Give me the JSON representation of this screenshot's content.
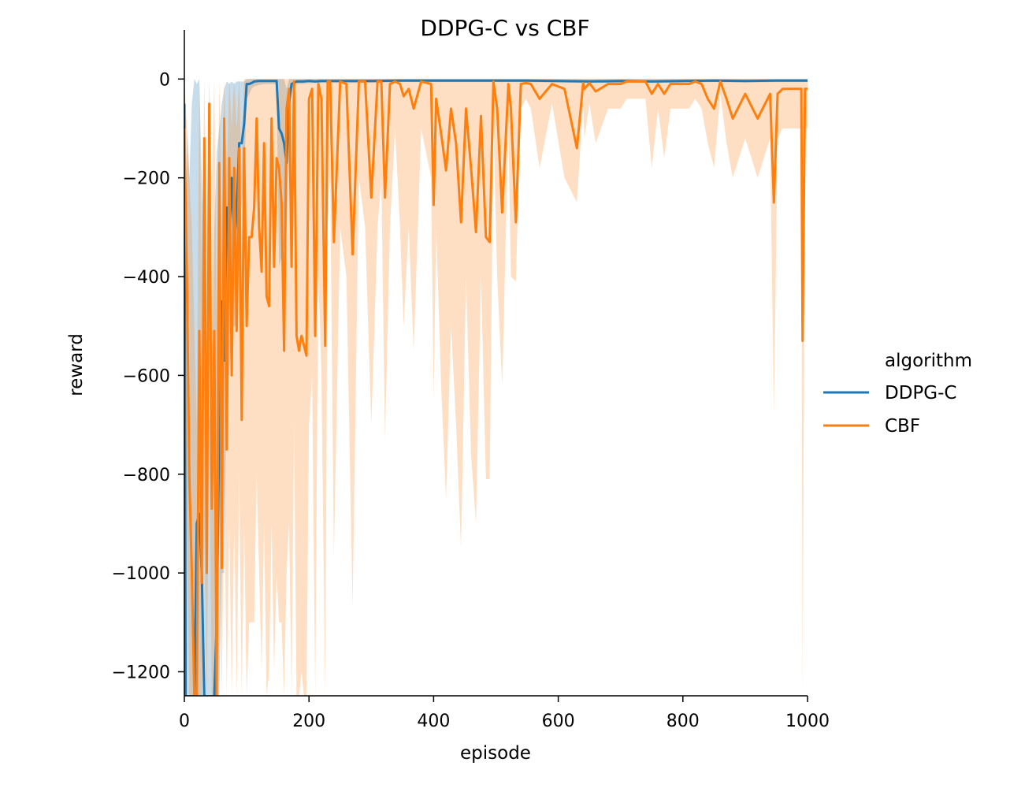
{
  "chart_data": {
    "type": "line",
    "title": "DDPG-C vs CBF",
    "xlabel": "episode",
    "ylabel": "reward",
    "xlim": [
      0,
      1000
    ],
    "ylim": [
      -1250,
      100
    ],
    "xticks": [
      0,
      200,
      400,
      600,
      800,
      1000
    ],
    "yticks": [
      0,
      -200,
      -400,
      -600,
      -800,
      -1000,
      -1200
    ],
    "xtick_labels": [
      "0",
      "200",
      "400",
      "600",
      "800",
      "1000"
    ],
    "ytick_labels": [
      "0",
      "−200",
      "−400",
      "−600",
      "−800",
      "−1000",
      "−1200"
    ],
    "grid": false,
    "legend": {
      "title": "algorithm",
      "placement": "right"
    },
    "series": [
      {
        "name": "DDPG-C",
        "color": "#1f77b4",
        "x": [
          0,
          2,
          5,
          8,
          12,
          16,
          20,
          24,
          28,
          32,
          36,
          40,
          44,
          48,
          52,
          56,
          60,
          64,
          68,
          72,
          76,
          80,
          84,
          88,
          92,
          96,
          100,
          104,
          108,
          112,
          120,
          130,
          140,
          148,
          152,
          156,
          160,
          164,
          168,
          172,
          180,
          190,
          200,
          210,
          220,
          230,
          260,
          300,
          350,
          400,
          450,
          500,
          550,
          600,
          650,
          700,
          750,
          800,
          850,
          900,
          950,
          1000
        ],
        "y": [
          -50,
          -1250,
          -1250,
          -1250,
          -1250,
          -1250,
          -900,
          -880,
          -1000,
          -1250,
          -1250,
          -1250,
          -1250,
          -1250,
          -1100,
          -700,
          -450,
          -570,
          -260,
          -320,
          -200,
          -330,
          -270,
          -130,
          -130,
          -90,
          -10,
          -10,
          -8,
          -5,
          -4,
          -4,
          -4,
          -4,
          -100,
          -110,
          -130,
          -170,
          -50,
          -10,
          -5,
          -5,
          -4,
          -5,
          -4,
          -4,
          -4,
          -4,
          -3,
          -3,
          -3,
          -3,
          -3,
          -4,
          -5,
          -4,
          -5,
          -4,
          -3,
          -4,
          -3,
          -3
        ],
        "lower": [
          -100,
          -1250,
          -1250,
          -1250,
          -1250,
          -1250,
          -1250,
          -1250,
          -1250,
          -1250,
          -1250,
          -1250,
          -1250,
          -1250,
          -1250,
          -1250,
          -1000,
          -1000,
          -600,
          -600,
          -500,
          -500,
          -500,
          -300,
          -250,
          -200,
          -40,
          -30,
          -20,
          -15,
          -12,
          -10,
          -10,
          -10,
          -380,
          -360,
          -340,
          -300,
          -150,
          -20,
          -10,
          -10,
          -8,
          -8,
          -8,
          -8,
          -8,
          -8,
          -6,
          -6,
          -6,
          -6,
          -6,
          -7,
          -8,
          -7,
          -8,
          -7,
          -6,
          -7,
          -6,
          -6
        ],
        "upper": [
          0,
          -300,
          -100,
          -200,
          -50,
          0,
          -10,
          0,
          -200,
          -400,
          -600,
          -700,
          -600,
          -300,
          -150,
          -100,
          -50,
          -20,
          -5,
          -10,
          -5,
          -10,
          -5,
          -5,
          -5,
          -5,
          0,
          0,
          0,
          0,
          0,
          0,
          0,
          0,
          0,
          0,
          0,
          -20,
          0,
          0,
          0,
          0,
          0,
          0,
          0,
          0,
          0,
          0,
          0,
          0,
          0,
          0,
          0,
          0,
          0,
          0,
          0,
          0,
          0,
          0,
          0,
          0
        ]
      },
      {
        "name": "CBF",
        "color": "#ff7f0e",
        "x": [
          0,
          4,
          8,
          12,
          16,
          20,
          24,
          28,
          32,
          36,
          40,
          44,
          48,
          52,
          56,
          60,
          64,
          68,
          72,
          76,
          80,
          84,
          88,
          92,
          96,
          100,
          104,
          108,
          112,
          116,
          120,
          124,
          128,
          132,
          136,
          140,
          144,
          148,
          152,
          156,
          160,
          164,
          168,
          172,
          176,
          180,
          184,
          188,
          192,
          196,
          200,
          205,
          210,
          215,
          220,
          226,
          230,
          234,
          240,
          250,
          260,
          270,
          280,
          290,
          300,
          310,
          316,
          322,
          330,
          338,
          346,
          352,
          360,
          368,
          380,
          396,
          400,
          404,
          412,
          420,
          428,
          436,
          444,
          452,
          460,
          468,
          476,
          484,
          490,
          496,
          502,
          510,
          520,
          524,
          532,
          540,
          548,
          556,
          570,
          590,
          610,
          630,
          640,
          642,
          650,
          660,
          680,
          700,
          710,
          716,
          730,
          740,
          750,
          760,
          770,
          780,
          790,
          800,
          810,
          820,
          830,
          840,
          850,
          860,
          870,
          880,
          900,
          920,
          940,
          946,
          952,
          960,
          980,
          990,
          992,
          996,
          1000
        ],
        "y": [
          -100,
          -400,
          -800,
          -1000,
          -1250,
          -1250,
          -510,
          -1020,
          -120,
          -1000,
          -50,
          -870,
          -510,
          -1250,
          -170,
          -990,
          -80,
          -750,
          -160,
          -600,
          -180,
          -510,
          -140,
          -690,
          -140,
          -500,
          -320,
          -320,
          -260,
          -80,
          -300,
          -390,
          -130,
          -440,
          -460,
          -80,
          -380,
          -160,
          -180,
          -250,
          -550,
          -60,
          -20,
          -380,
          -5,
          -520,
          -550,
          -520,
          -540,
          -560,
          -40,
          -20,
          -520,
          -10,
          -40,
          -540,
          -5,
          -5,
          -330,
          -5,
          -10,
          -355,
          -5,
          -5,
          -240,
          -5,
          -5,
          -240,
          -10,
          -5,
          -10,
          -35,
          -20,
          -60,
          -5,
          -10,
          -255,
          -40,
          -110,
          -185,
          -60,
          -130,
          -290,
          -60,
          -180,
          -310,
          -75,
          -320,
          -330,
          -5,
          -60,
          -270,
          -10,
          -60,
          -290,
          -10,
          -8,
          -10,
          -40,
          -10,
          -20,
          -140,
          -8,
          -20,
          -8,
          -25,
          -10,
          -10,
          -5,
          -5,
          -5,
          -5,
          -30,
          -10,
          -30,
          -10,
          -10,
          -10,
          -10,
          -5,
          -10,
          -40,
          -60,
          -5,
          -40,
          -80,
          -30,
          -80,
          -30,
          -250,
          -30,
          -20,
          -20,
          -20,
          -530,
          -20,
          -20
        ],
        "lower": [
          -400,
          -900,
          -1250,
          -1250,
          -1250,
          -1250,
          -1250,
          -1250,
          -900,
          -1250,
          -700,
          -1250,
          -1250,
          -1250,
          -900,
          -1250,
          -800,
          -1250,
          -900,
          -1250,
          -900,
          -1250,
          -800,
          -1250,
          -900,
          -1250,
          -1100,
          -1100,
          -1100,
          -800,
          -1000,
          -1200,
          -900,
          -1250,
          -1200,
          -900,
          -1200,
          -1000,
          -1100,
          -1100,
          -1250,
          -1000,
          -900,
          -1250,
          -700,
          -1250,
          -1250,
          -1200,
          -1250,
          -1250,
          -700,
          -600,
          -1250,
          -400,
          -600,
          -1250,
          -300,
          -200,
          -970,
          -300,
          -400,
          -1070,
          -200,
          -300,
          -700,
          -300,
          -200,
          -730,
          -300,
          -100,
          -300,
          -500,
          -300,
          -550,
          -100,
          -200,
          -650,
          -300,
          -620,
          -850,
          -500,
          -700,
          -950,
          -400,
          -760,
          -900,
          -400,
          -810,
          -810,
          -100,
          -400,
          -620,
          -100,
          -400,
          -410,
          -60,
          -40,
          -60,
          -180,
          -50,
          -200,
          -250,
          -50,
          -120,
          -50,
          -130,
          -60,
          -60,
          -40,
          -40,
          -40,
          -40,
          -180,
          -60,
          -160,
          -60,
          -60,
          -60,
          -60,
          -40,
          -60,
          -130,
          -180,
          -30,
          -130,
          -200,
          -120,
          -200,
          -120,
          -680,
          -120,
          -100,
          -100,
          -100,
          -1250,
          -100,
          -100
        ],
        "upper": [
          0,
          -100,
          -200,
          -300,
          -500,
          -700,
          0,
          -400,
          0,
          -300,
          0,
          -200,
          0,
          -500,
          0,
          -300,
          0,
          -200,
          0,
          -100,
          0,
          -100,
          0,
          -200,
          0,
          0,
          0,
          0,
          0,
          0,
          0,
          0,
          0,
          0,
          0,
          0,
          0,
          0,
          0,
          0,
          0,
          0,
          0,
          0,
          0,
          0,
          0,
          0,
          0,
          0,
          0,
          0,
          0,
          0,
          0,
          0,
          0,
          0,
          0,
          0,
          0,
          0,
          0,
          0,
          0,
          0,
          0,
          0,
          0,
          0,
          0,
          0,
          0,
          0,
          0,
          0,
          0,
          0,
          0,
          0,
          0,
          0,
          0,
          0,
          0,
          0,
          0,
          0,
          0,
          0,
          0,
          0,
          0,
          0,
          0,
          0,
          0,
          0,
          0,
          0,
          0,
          0,
          0,
          0,
          0,
          0,
          0,
          0,
          0,
          0,
          0,
          0,
          0,
          0,
          0,
          0,
          0,
          0,
          0,
          0,
          0,
          0,
          0,
          0,
          0,
          0,
          0,
          0,
          0,
          0,
          0,
          0,
          0,
          0,
          0,
          0,
          0
        ]
      }
    ]
  }
}
